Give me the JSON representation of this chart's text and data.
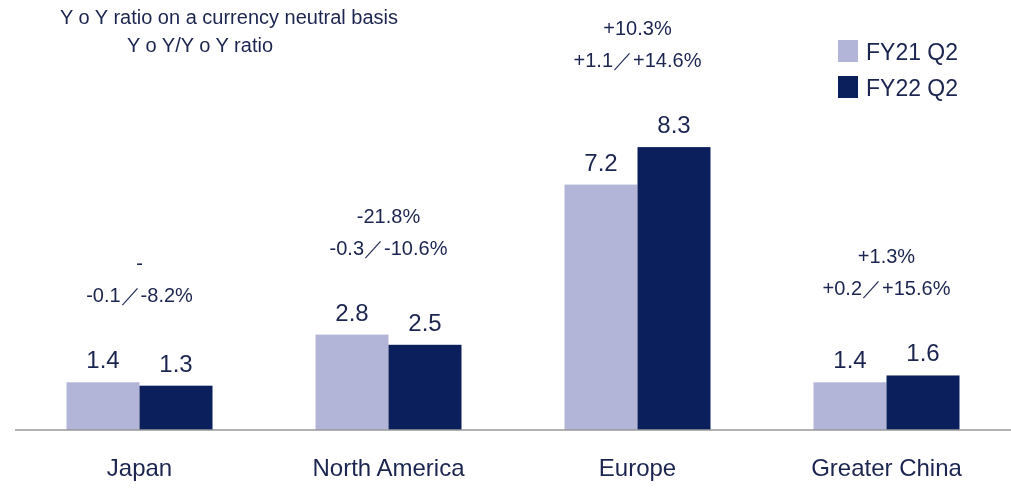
{
  "chart_data": {
    "type": "bar",
    "title": "Y o Y ratio on a currency neutral basis",
    "subtitle": "Y o Y/Y o Y ratio",
    "categories": [
      "Japan",
      "North America",
      "Europe",
      "Greater China"
    ],
    "series": [
      {
        "name": "FY21 Q2",
        "color": "#b3b5d8",
        "values": [
          1.4,
          2.8,
          7.2,
          1.4
        ]
      },
      {
        "name": "FY22 Q2",
        "color": "#0b1f5c",
        "values": [
          1.3,
          2.5,
          8.3,
          1.6
        ]
      }
    ],
    "tick_labels": "x",
    "data_labels": true,
    "legend": "top right",
    "grid": false,
    "annotations": [
      "-\n-0.1／-8.2%",
      "-21.8%\n-0.3／-10.6%",
      "+10.3%\n+1.1／+14.6%",
      "+1.3%\n+0.2／+15.6%"
    ]
  }
}
